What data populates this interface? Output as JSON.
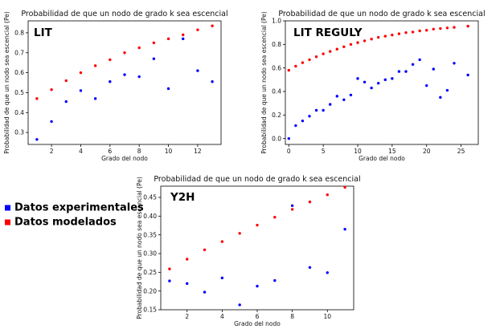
{
  "chart_data": [
    {
      "type": "scatter",
      "title": "Probabilidad de que un nodo de grado k sea escencial",
      "tag": "LIT",
      "xlabel": "Grado del nodo",
      "ylabel": "Probabilidad de que un nodo sea escencial (Pe)",
      "xlim": [
        0.4,
        13.6
      ],
      "ylim": [
        0.24,
        0.86
      ],
      "xticks": [
        2,
        4,
        6,
        8,
        10,
        12
      ],
      "yticks": [
        0.3,
        0.4,
        0.5,
        0.6,
        0.7,
        0.8
      ],
      "ytick_labels": [
        "0.3",
        "0.4",
        "0.5",
        "0.6",
        "0.7",
        "0.8"
      ],
      "series": [
        {
          "name": "Datos experimentales",
          "color": "#0000ff",
          "x": [
            1,
            2,
            3,
            4,
            5,
            6,
            7,
            8,
            9,
            10,
            11,
            12,
            13
          ],
          "y": [
            0.265,
            0.355,
            0.455,
            0.51,
            0.47,
            0.555,
            0.59,
            0.58,
            0.67,
            0.52,
            0.77,
            0.61,
            0.555
          ]
        },
        {
          "name": "Datos modelados",
          "color": "#ff0000",
          "x": [
            1,
            2,
            3,
            4,
            5,
            6,
            7,
            8,
            9,
            10,
            11,
            12,
            13
          ],
          "y": [
            0.47,
            0.515,
            0.56,
            0.6,
            0.635,
            0.665,
            0.7,
            0.725,
            0.75,
            0.77,
            0.79,
            0.815,
            0.835
          ]
        }
      ]
    },
    {
      "type": "scatter",
      "title": "Probabilidad de que un nodo de grado k sea escencial",
      "tag": "LIT REGULY",
      "xlabel": "Grado del nodo",
      "ylabel": "Probabilidad de que un nodo sea escencial (Pe)",
      "xlim": [
        -0.5,
        27.5
      ],
      "ylim": [
        -0.05,
        1.0
      ],
      "xticks": [
        0,
        5,
        10,
        15,
        20,
        25
      ],
      "yticks": [
        0.0,
        0.2,
        0.4,
        0.6,
        0.8,
        1.0
      ],
      "ytick_labels": [
        "0.0",
        "0.2",
        "0.4",
        "0.6",
        "0.8",
        "1.0"
      ],
      "series": [
        {
          "name": "Datos experimentales",
          "color": "#0000ff",
          "x": [
            0,
            1,
            2,
            3,
            4,
            5,
            6,
            7,
            8,
            9,
            10,
            11,
            12,
            13,
            14,
            15,
            16,
            17,
            18,
            19,
            20,
            21,
            22,
            23,
            24,
            26
          ],
          "y": [
            0.0,
            0.11,
            0.15,
            0.19,
            0.24,
            0.24,
            0.29,
            0.36,
            0.33,
            0.37,
            0.51,
            0.48,
            0.43,
            0.47,
            0.5,
            0.51,
            0.57,
            0.57,
            0.63,
            0.67,
            0.45,
            0.59,
            0.35,
            0.41,
            0.64,
            0.54
          ]
        },
        {
          "name": "Datos modelados",
          "color": "#ff0000",
          "x": [
            0,
            1,
            2,
            3,
            4,
            5,
            6,
            7,
            8,
            9,
            10,
            11,
            12,
            13,
            14,
            15,
            16,
            17,
            18,
            19,
            20,
            21,
            22,
            23,
            24,
            26
          ],
          "y": [
            0.58,
            0.615,
            0.645,
            0.67,
            0.695,
            0.72,
            0.74,
            0.76,
            0.78,
            0.8,
            0.815,
            0.83,
            0.845,
            0.86,
            0.87,
            0.88,
            0.89,
            0.9,
            0.905,
            0.915,
            0.92,
            0.93,
            0.935,
            0.94,
            0.945,
            0.955
          ]
        }
      ]
    },
    {
      "type": "scatter",
      "title": "Probabilidad de que un nodo de grado k sea escencial",
      "tag": "Y2H",
      "xlabel": "Grado del nodo",
      "ylabel": "Probabilidad de que un nodo sea escencial (Pe)",
      "xlim": [
        0.5,
        11.5
      ],
      "ylim": [
        0.15,
        0.48
      ],
      "xticks": [
        2,
        4,
        6,
        8,
        10
      ],
      "yticks": [
        0.15,
        0.2,
        0.25,
        0.3,
        0.35,
        0.4,
        0.45
      ],
      "ytick_labels": [
        "0.15",
        "0.20",
        "0.25",
        "0.30",
        "0.35",
        "0.40",
        "0.45"
      ],
      "series": [
        {
          "name": "Datos experimentales",
          "color": "#0000ff",
          "x": [
            1,
            2,
            3,
            4,
            5,
            6,
            7,
            8,
            9,
            10,
            11
          ],
          "y": [
            0.227,
            0.22,
            0.197,
            0.235,
            0.163,
            0.213,
            0.228,
            0.428,
            0.263,
            0.249,
            0.365
          ]
        },
        {
          "name": "Datos modelados",
          "color": "#ff0000",
          "x": [
            1,
            2,
            3,
            4,
            5,
            6,
            7,
            8,
            9,
            10,
            11
          ],
          "y": [
            0.259,
            0.285,
            0.31,
            0.332,
            0.354,
            0.376,
            0.397,
            0.418,
            0.438,
            0.457,
            0.477
          ]
        }
      ]
    }
  ],
  "legend": {
    "items": [
      {
        "label": "Datos experimentales",
        "color": "#0000ff"
      },
      {
        "label": "Datos modelados",
        "color": "#ff0000"
      }
    ]
  }
}
